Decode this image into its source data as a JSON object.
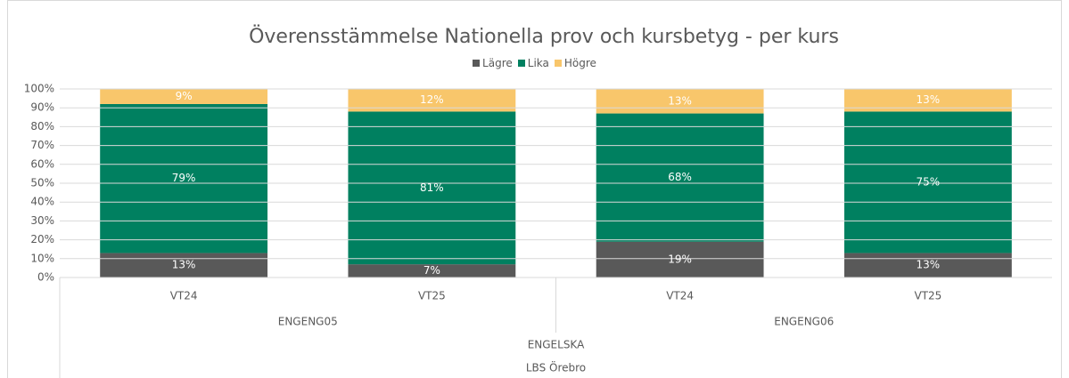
{
  "chart_data": {
    "type": "stacked_bar",
    "title": "Överensstämmelse Nationella prov och kursbetyg - per kurs",
    "categories": [
      "VT24",
      "VT25",
      "VT24",
      "VT25"
    ],
    "category_groups": [
      "ENGENG05",
      "ENGENG06"
    ],
    "category_supergroup": "ENGELSKA",
    "category_root": "LBS Örebro",
    "series": [
      {
        "name": "Lägre",
        "color": "#595959",
        "values": [
          13,
          7,
          19,
          13
        ],
        "value_labels": [
          "13%",
          "7%",
          "19%",
          "13%"
        ]
      },
      {
        "name": "Lika",
        "color": "#008060",
        "values": [
          79,
          81,
          68,
          75
        ],
        "value_labels": [
          "79%",
          "81%",
          "68%",
          "75%"
        ]
      },
      {
        "name": "Högre",
        "color": "#f8c66b",
        "values": [
          9,
          12,
          13,
          13
        ],
        "value_labels": [
          "9%",
          "12%",
          "13%",
          "13%"
        ]
      }
    ],
    "ylim": [
      0,
      100
    ],
    "yticks": [
      {
        "value": 0,
        "label": "0%"
      },
      {
        "value": 10,
        "label": "10%"
      },
      {
        "value": 20,
        "label": "20%"
      },
      {
        "value": 30,
        "label": "30%"
      },
      {
        "value": 40,
        "label": "40%"
      },
      {
        "value": 50,
        "label": "50%"
      },
      {
        "value": 60,
        "label": "60%"
      },
      {
        "value": 70,
        "label": "70%"
      },
      {
        "value": 80,
        "label": "80%"
      },
      {
        "value": 90,
        "label": "90%"
      },
      {
        "value": 100,
        "label": "100%"
      }
    ],
    "grid": true,
    "legend": "top"
  }
}
